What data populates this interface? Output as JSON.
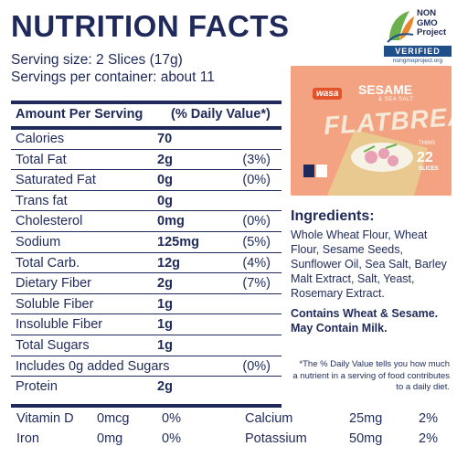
{
  "title": "NUTRITION FACTS",
  "serving_size": "Serving size: 2 Slices (17g)",
  "servings_per_container": "Servings per container: about 11",
  "header": {
    "amount": "Amount Per Serving",
    "daily_value": "(% Daily Value*)"
  },
  "rows": [
    {
      "label": "Calories",
      "amount": "70",
      "pct": ""
    },
    {
      "label": "Total Fat",
      "amount": "2g",
      "pct": "(3%)"
    },
    {
      "label": "Saturated Fat",
      "amount": "0g",
      "pct": "(0%)"
    },
    {
      "label": "Trans fat",
      "amount": "0g",
      "pct": ""
    },
    {
      "label": "Cholesterol",
      "amount": "0mg",
      "pct": "(0%)"
    },
    {
      "label": "Sodium",
      "amount": "125mg",
      "pct": "(5%)"
    },
    {
      "label": "Total Carb.",
      "amount": "12g",
      "pct": "(4%)"
    },
    {
      "label": "Dietary Fiber",
      "amount": "2g",
      "pct": "(7%)"
    },
    {
      "label": "Soluble Fiber",
      "amount": "1g",
      "pct": ""
    },
    {
      "label": "Insoluble Fiber",
      "amount": "1g",
      "pct": ""
    },
    {
      "label": "Total Sugars",
      "amount": "1g",
      "pct": ""
    },
    {
      "label": "Includes 0g added Sugars",
      "amount": "",
      "pct": "(0%)"
    },
    {
      "label": "Protein",
      "amount": "2g",
      "pct": ""
    }
  ],
  "vitamins": [
    {
      "name1": "Vitamin D",
      "amt1": "0mcg",
      "pct1": "0%",
      "name2": "Calcium",
      "amt2": "25mg",
      "pct2": "2%"
    },
    {
      "name1": "Iron",
      "amt1": "0mg",
      "pct1": "0%",
      "name2": "Potassium",
      "amt2": "50mg",
      "pct2": "2%"
    }
  ],
  "badge": {
    "line1": "NON",
    "line2": "GMO",
    "line3": "Project",
    "verified": "VERIFIED",
    "url": "nongmoproject.org"
  },
  "product": {
    "brand": "wasa",
    "name": "SESAME",
    "sub": "& SEA SALT",
    "product_line": "FLATBREAD",
    "thins": "THINS",
    "count": "22",
    "slices": "SLICES"
  },
  "ingredients": {
    "title": "Ingredients:",
    "body": "Whole Wheat Flour, Wheat Flour, Sesame Seeds, Sunflower Oil, Sea Salt, Barley Malt Extract, Salt, Yeast, Rosemary Extract.",
    "contains": "Contains Wheat & Sesame. May Contain Milk."
  },
  "footnote": "*The % Daily Value tells you how much a nutrient in a serving of food contributes to a daily diet.",
  "colors": {
    "navy": "#1f2a5a",
    "box_orange": "#f3a381",
    "badge_blue": "#1f4f8a",
    "badge_green": "#6ab04c",
    "badge_orange": "#e8862c"
  }
}
